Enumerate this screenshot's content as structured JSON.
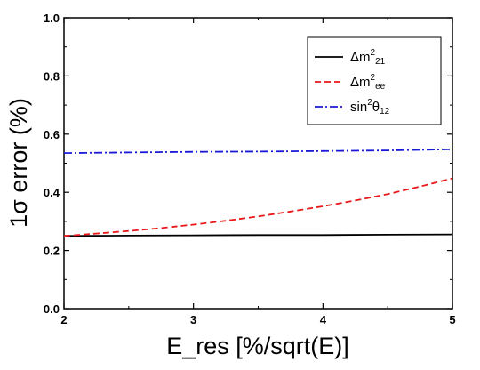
{
  "chart_data": {
    "type": "line",
    "xlabel": "E_res [%/sqrt(E)]",
    "ylabel": "1σ error (%)",
    "xlim": [
      2,
      5
    ],
    "ylim": [
      0.0,
      1.0
    ],
    "x_ticks": [
      "2",
      "3",
      "4",
      "5"
    ],
    "y_ticks": [
      "0.0",
      "0.2",
      "0.4",
      "0.6",
      "0.8",
      "1.0"
    ],
    "grid": false,
    "legend_position": "top-right",
    "series": [
      {
        "name": "Δm²₂₁",
        "legend": {
          "base": "Δm",
          "sup": "2",
          "sub": "21"
        },
        "color": "#000000",
        "style": "solid",
        "x": [
          2.0,
          2.5,
          3.0,
          3.5,
          4.0,
          4.5,
          5.0
        ],
        "values": [
          0.25,
          0.251,
          0.252,
          0.253,
          0.253,
          0.254,
          0.255
        ]
      },
      {
        "name": "Δm²ee",
        "legend": {
          "base": "Δm",
          "sup": "2",
          "sub": "ee"
        },
        "color": "#e8181a",
        "style": "dashed",
        "x": [
          2.0,
          2.25,
          2.5,
          2.75,
          3.0,
          3.25,
          3.5,
          3.75,
          4.0,
          4.25,
          4.5,
          4.75,
          5.0
        ],
        "values": [
          0.25,
          0.258,
          0.267,
          0.277,
          0.289,
          0.302,
          0.317,
          0.334,
          0.352,
          0.372,
          0.394,
          0.42,
          0.448
        ]
      },
      {
        "name": "sin²θ₁₂",
        "legend": {
          "base": "sin",
          "sup": "2",
          "mid": "θ",
          "sub": "12"
        },
        "color": "#1a1ad6",
        "style": "dashdot",
        "x": [
          2.0,
          2.5,
          3.0,
          3.5,
          4.0,
          4.5,
          5.0
        ],
        "values": [
          0.535,
          0.537,
          0.539,
          0.54,
          0.542,
          0.544,
          0.548
        ]
      }
    ]
  }
}
